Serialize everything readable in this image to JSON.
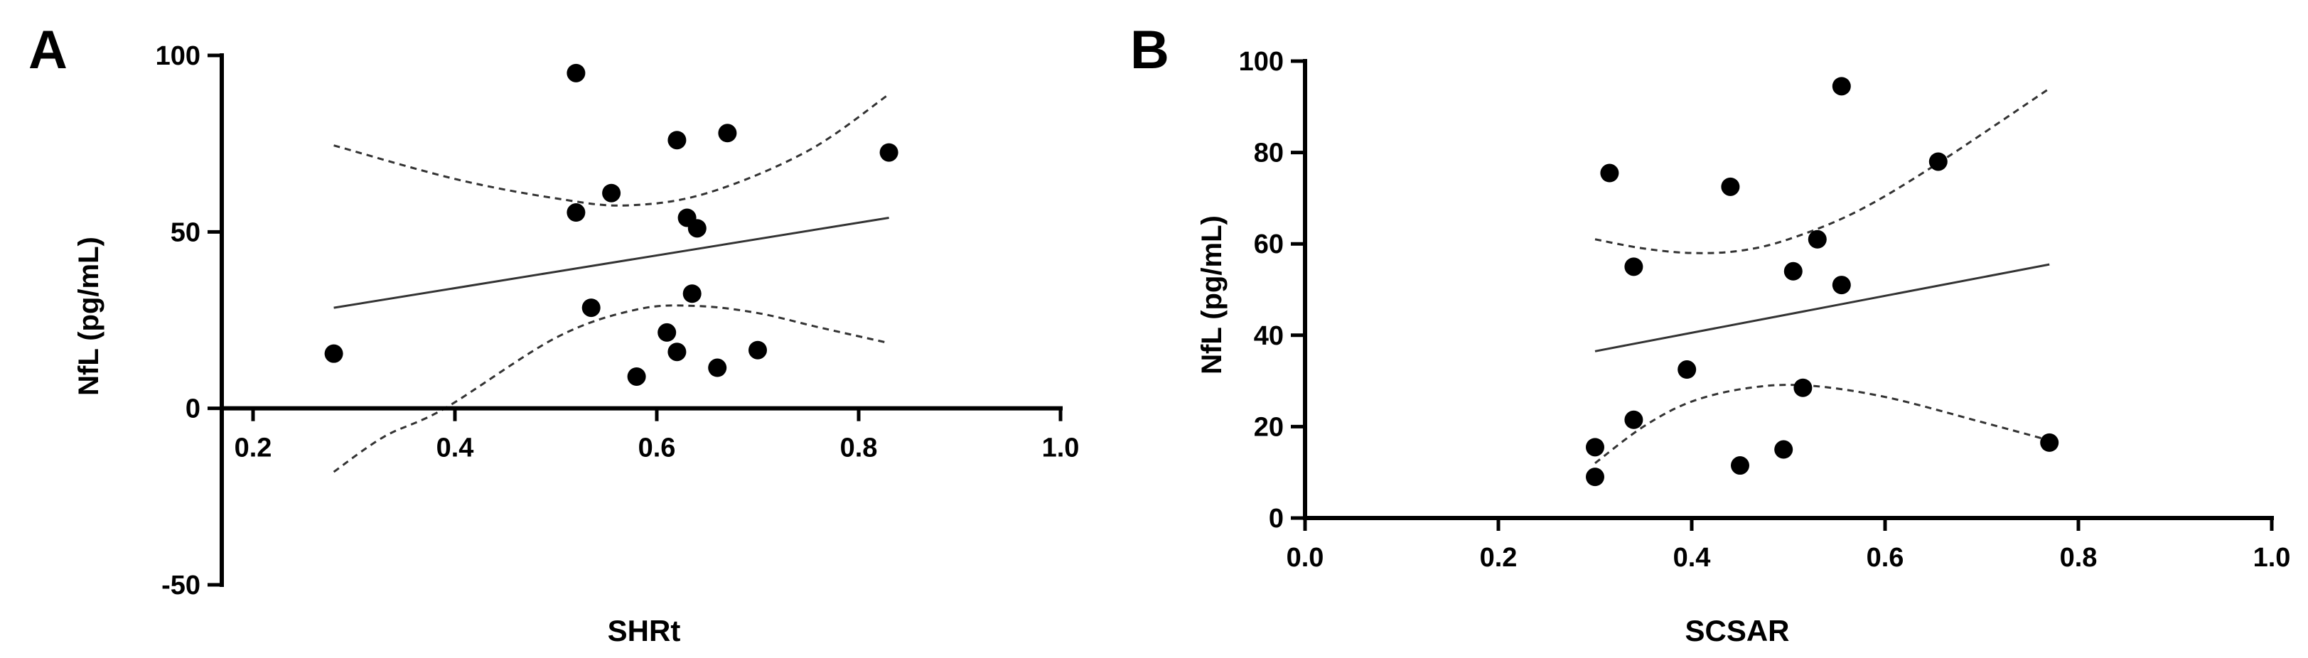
{
  "chart_data": [
    {
      "panel": "A",
      "type": "scatter",
      "xlabel": "SHRt",
      "ylabel": "NfL (pg/mL)",
      "xlim": [
        0,
        1.0
      ],
      "ylim": [
        -50,
        100
      ],
      "xticks": [
        0.2,
        0.4,
        0.6,
        0.8,
        1.0
      ],
      "xtick_labels": [
        "0.2",
        "0.4",
        "0.6",
        "0.8",
        "1.0"
      ],
      "yticks": [
        -50,
        0,
        50,
        100
      ],
      "ytick_labels": [
        "-50",
        "0",
        "50",
        "100"
      ],
      "points": [
        {
          "x": 0.28,
          "y": 15.5
        },
        {
          "x": 0.52,
          "y": 95
        },
        {
          "x": 0.52,
          "y": 55.5
        },
        {
          "x": 0.535,
          "y": 28.5
        },
        {
          "x": 0.555,
          "y": 61
        },
        {
          "x": 0.58,
          "y": 9
        },
        {
          "x": 0.61,
          "y": 21.5
        },
        {
          "x": 0.62,
          "y": 76
        },
        {
          "x": 0.62,
          "y": 16
        },
        {
          "x": 0.63,
          "y": 54
        },
        {
          "x": 0.635,
          "y": 32.5
        },
        {
          "x": 0.64,
          "y": 51
        },
        {
          "x": 0.66,
          "y": 11.5
        },
        {
          "x": 0.67,
          "y": 78
        },
        {
          "x": 0.7,
          "y": 16.5
        },
        {
          "x": 0.83,
          "y": 72.5
        }
      ],
      "fit_line": [
        {
          "x": 0.28,
          "y": 28.5
        },
        {
          "x": 0.83,
          "y": 54
        }
      ],
      "ci_upper": [
        {
          "x": 0.28,
          "y": 74.5
        },
        {
          "x": 0.4,
          "y": 65
        },
        {
          "x": 0.5,
          "y": 59.5
        },
        {
          "x": 0.57,
          "y": 57.5
        },
        {
          "x": 0.65,
          "y": 61
        },
        {
          "x": 0.75,
          "y": 73
        },
        {
          "x": 0.83,
          "y": 89
        }
      ],
      "ci_lower": [
        {
          "x": 0.28,
          "y": -18
        },
        {
          "x": 0.33,
          "y": -8
        },
        {
          "x": 0.39,
          "y": 0
        },
        {
          "x": 0.5,
          "y": 20
        },
        {
          "x": 0.58,
          "y": 28
        },
        {
          "x": 0.64,
          "y": 29
        },
        {
          "x": 0.7,
          "y": 27
        },
        {
          "x": 0.76,
          "y": 23
        },
        {
          "x": 0.83,
          "y": 18.5
        }
      ]
    },
    {
      "panel": "B",
      "type": "scatter",
      "xlabel": "SCSAR",
      "ylabel": "NfL (pg/mL)",
      "xlim": [
        0,
        1.0
      ],
      "ylim": [
        0,
        100
      ],
      "xticks": [
        0.0,
        0.2,
        0.4,
        0.6,
        0.8,
        1.0
      ],
      "xtick_labels": [
        "0.0",
        "0.2",
        "0.4",
        "0.6",
        "0.8",
        "1.0"
      ],
      "yticks": [
        0,
        20,
        40,
        60,
        80,
        100
      ],
      "ytick_labels": [
        "0",
        "20",
        "40",
        "60",
        "80",
        "100"
      ],
      "points": [
        {
          "x": 0.3,
          "y": 15.5
        },
        {
          "x": 0.3,
          "y": 9
        },
        {
          "x": 0.315,
          "y": 75.5
        },
        {
          "x": 0.34,
          "y": 55
        },
        {
          "x": 0.34,
          "y": 21.5
        },
        {
          "x": 0.395,
          "y": 32.5
        },
        {
          "x": 0.44,
          "y": 72.5
        },
        {
          "x": 0.45,
          "y": 11.5
        },
        {
          "x": 0.495,
          "y": 15
        },
        {
          "x": 0.505,
          "y": 54
        },
        {
          "x": 0.515,
          "y": 28.5
        },
        {
          "x": 0.53,
          "y": 61
        },
        {
          "x": 0.555,
          "y": 94.5
        },
        {
          "x": 0.555,
          "y": 51
        },
        {
          "x": 0.655,
          "y": 78
        },
        {
          "x": 0.77,
          "y": 16.5
        }
      ],
      "fit_line": [
        {
          "x": 0.3,
          "y": 36.5
        },
        {
          "x": 0.77,
          "y": 55.5
        }
      ],
      "ci_upper": [
        {
          "x": 0.3,
          "y": 61
        },
        {
          "x": 0.35,
          "y": 59
        },
        {
          "x": 0.4,
          "y": 58
        },
        {
          "x": 0.45,
          "y": 58.5
        },
        {
          "x": 0.5,
          "y": 61
        },
        {
          "x": 0.57,
          "y": 67
        },
        {
          "x": 0.65,
          "y": 77
        },
        {
          "x": 0.77,
          "y": 94
        }
      ],
      "ci_lower": [
        {
          "x": 0.3,
          "y": 12
        },
        {
          "x": 0.35,
          "y": 20
        },
        {
          "x": 0.4,
          "y": 25.5
        },
        {
          "x": 0.46,
          "y": 28.5
        },
        {
          "x": 0.52,
          "y": 29
        },
        {
          "x": 0.6,
          "y": 26.5
        },
        {
          "x": 0.7,
          "y": 21
        },
        {
          "x": 0.77,
          "y": 17
        }
      ]
    }
  ]
}
